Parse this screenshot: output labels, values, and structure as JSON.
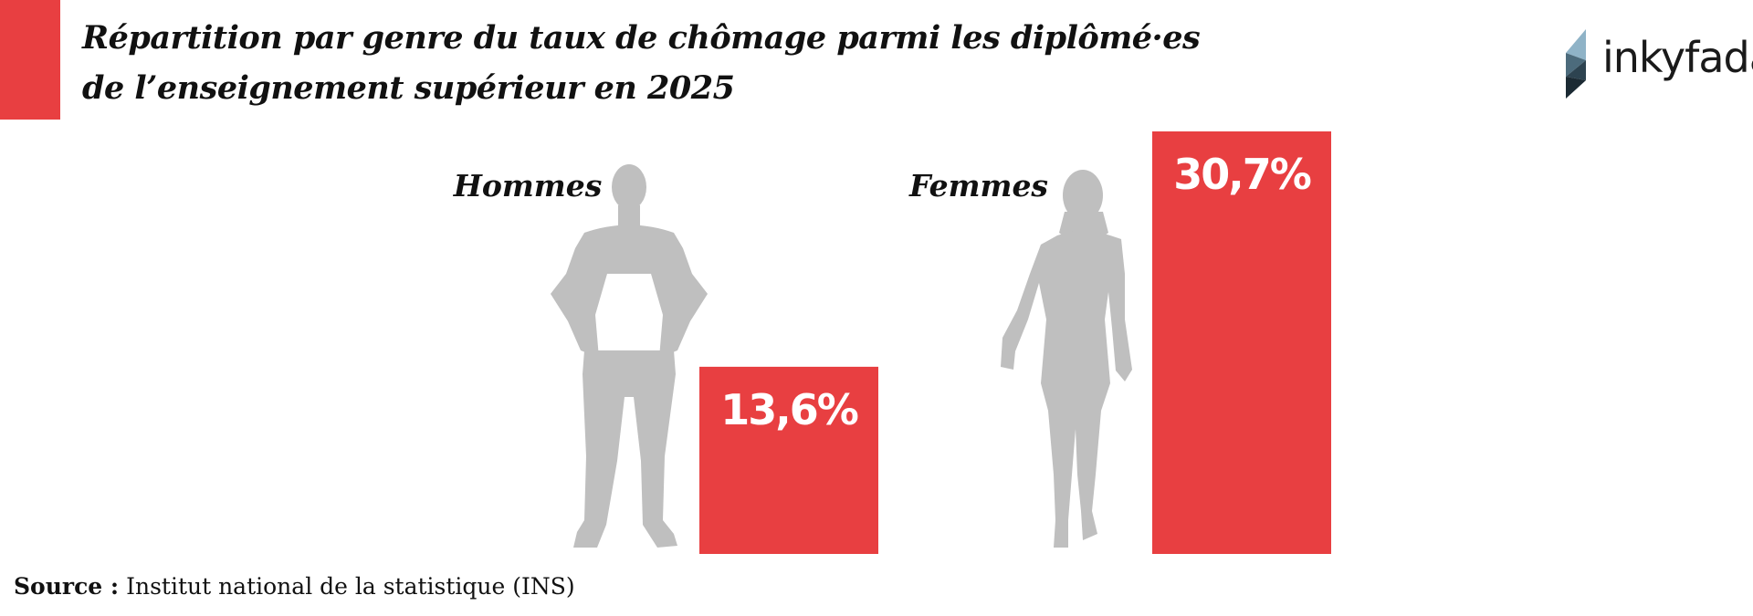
{
  "title_lines": [
    "Répartition par genre du taux de chômage parmi les diplômé·es",
    "de l’enseignement supérieur en 2025"
  ],
  "logo_text": "inkyfada",
  "source": {
    "label": "Source :",
    "text": "Institut national de la statistique (INS)"
  },
  "colors": {
    "accent": "#e83f41",
    "silhouette": "#bfbfbf",
    "text": "#111111"
  },
  "icons": {
    "men_group": "man-silhouette-icon",
    "women_group": "woman-silhouette-icon",
    "logo": "inkyfada-logo-icon"
  },
  "chart_data": {
    "type": "bar",
    "categories": [
      "Hommes",
      "Femmes"
    ],
    "values": [
      13.6,
      30.7
    ],
    "value_labels": [
      "13,6%",
      "30,7%"
    ],
    "ylim": [
      0,
      30.7
    ]
  }
}
